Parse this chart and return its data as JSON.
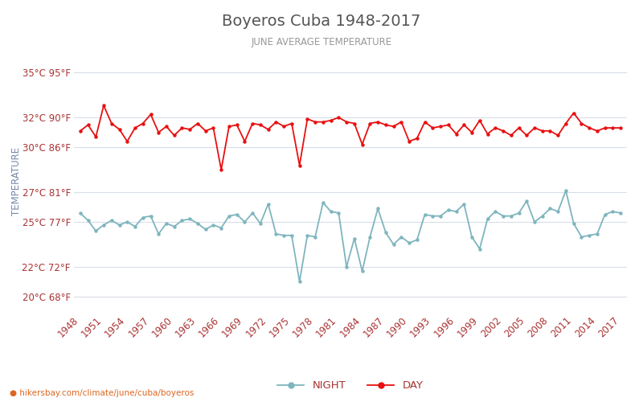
{
  "title": "Boyeros Cuba 1948-2017",
  "subtitle": "JUNE AVERAGE TEMPERATURE",
  "ylabel": "TEMPERATURE",
  "years": [
    1948,
    1949,
    1950,
    1951,
    1952,
    1953,
    1954,
    1955,
    1956,
    1957,
    1958,
    1959,
    1960,
    1961,
    1962,
    1963,
    1964,
    1965,
    1966,
    1967,
    1968,
    1969,
    1970,
    1971,
    1972,
    1973,
    1974,
    1975,
    1976,
    1977,
    1978,
    1979,
    1980,
    1981,
    1982,
    1983,
    1984,
    1985,
    1986,
    1987,
    1988,
    1989,
    1990,
    1991,
    1992,
    1993,
    1994,
    1995,
    1996,
    1997,
    1998,
    1999,
    2000,
    2001,
    2002,
    2003,
    2004,
    2005,
    2006,
    2007,
    2008,
    2009,
    2010,
    2011,
    2012,
    2013,
    2014,
    2015,
    2016,
    2017
  ],
  "day_temps": [
    31.1,
    31.5,
    30.7,
    32.8,
    31.6,
    31.2,
    30.4,
    31.3,
    31.6,
    32.2,
    31.0,
    31.4,
    30.8,
    31.3,
    31.2,
    31.6,
    31.1,
    31.3,
    28.5,
    31.4,
    31.5,
    30.4,
    31.6,
    31.5,
    31.2,
    31.7,
    31.4,
    31.6,
    28.8,
    31.9,
    31.7,
    31.7,
    31.8,
    32.0,
    31.7,
    31.6,
    30.2,
    31.6,
    31.7,
    31.5,
    31.4,
    31.7,
    30.4,
    30.6,
    31.7,
    31.3,
    31.4,
    31.5,
    30.9,
    31.5,
    31.0,
    31.8,
    30.9,
    31.3,
    31.1,
    30.8,
    31.3,
    30.8,
    31.3,
    31.1,
    31.1,
    30.8,
    31.6,
    32.3,
    31.6,
    31.3,
    31.1,
    31.3,
    31.3,
    31.3
  ],
  "night_temps": [
    25.6,
    25.1,
    24.4,
    24.8,
    25.1,
    24.8,
    25.0,
    24.7,
    25.3,
    25.4,
    24.2,
    24.9,
    24.7,
    25.1,
    25.2,
    24.9,
    24.5,
    24.8,
    24.6,
    25.4,
    25.5,
    25.0,
    25.6,
    24.9,
    26.2,
    24.2,
    24.1,
    24.1,
    21.0,
    24.1,
    24.0,
    26.3,
    25.7,
    25.6,
    22.0,
    23.9,
    21.7,
    24.0,
    25.9,
    24.3,
    23.5,
    24.0,
    23.6,
    23.8,
    25.5,
    25.4,
    25.4,
    25.8,
    25.7,
    26.2,
    24.0,
    23.2,
    25.2,
    25.7,
    25.4,
    25.4,
    25.6,
    26.4,
    25.0,
    25.4,
    25.9,
    25.7,
    27.1,
    24.9,
    24.0,
    24.1,
    24.2,
    25.5,
    25.7,
    25.6
  ],
  "day_color": "#e81010",
  "night_color": "#7eb5be",
  "background_color": "#ffffff",
  "grid_color": "#d8dde8",
  "title_color": "#555555",
  "subtitle_color": "#999999",
  "ylabel_color": "#7788aa",
  "tick_color": "#aa3333",
  "yticks_c": [
    20,
    22,
    25,
    27,
    30,
    32,
    35
  ],
  "yticks_f": [
    68,
    72,
    77,
    81,
    86,
    90,
    95
  ],
  "ylim": [
    19.0,
    36.5
  ],
  "footer": "hikersbay.com/climate/june/cuba/boyeros",
  "legend_night": "NIGHT",
  "legend_day": "DAY",
  "xtick_start": 1948,
  "xtick_step": 3
}
